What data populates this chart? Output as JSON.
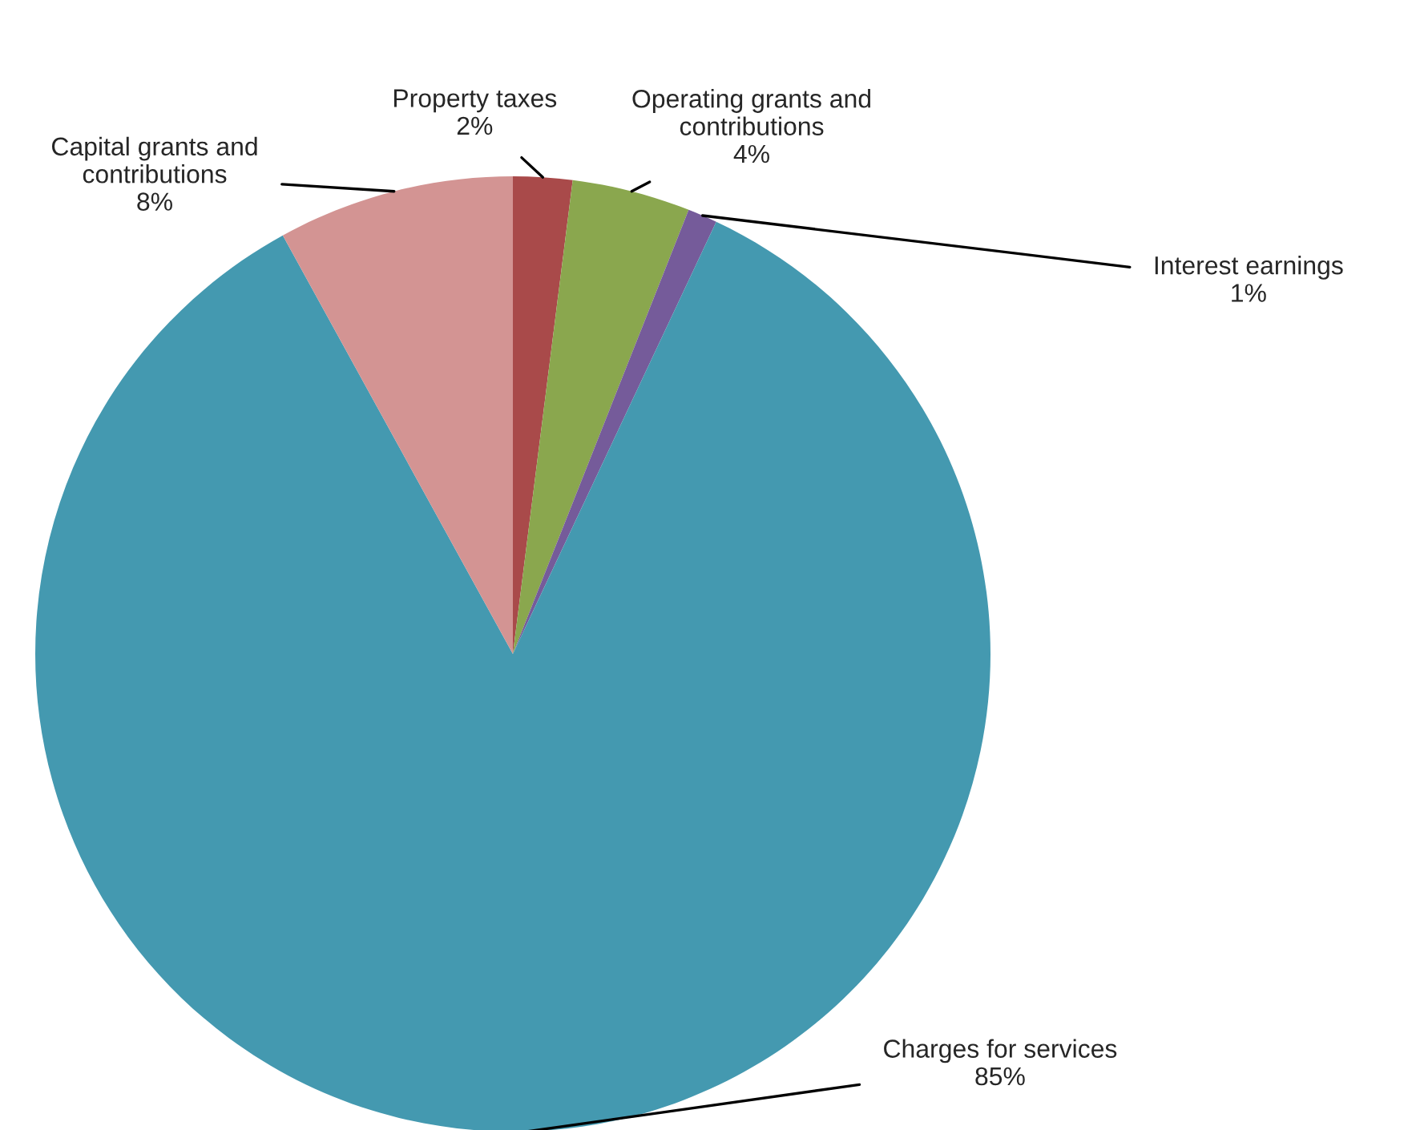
{
  "chart_data": {
    "type": "pie",
    "categories": [
      "Property taxes",
      "Operating grants and\ncontributions",
      "Interest earnings",
      "Charges for services",
      "Capital grants and\ncontributions"
    ],
    "values": [
      2,
      4,
      1,
      85,
      8
    ],
    "value_labels": [
      "2%",
      "4%",
      "1%",
      "85%",
      "8%"
    ],
    "colors": [
      "#a94a4a",
      "#8aa74e",
      "#755b9a",
      "#4499b0",
      "#d39493"
    ],
    "legend": false
  }
}
